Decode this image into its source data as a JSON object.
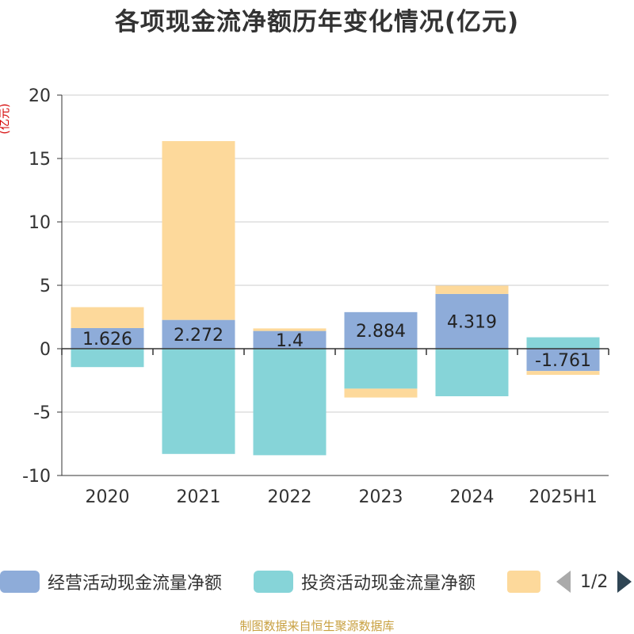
{
  "title": "各项现金流净额历年变化情况(亿元)",
  "unit_label": "(亿元)",
  "source": "制图数据来自恒生聚源数据库",
  "legend": {
    "items": [
      {
        "label": "经营活动现金流量净额",
        "color": "#8eacd9"
      },
      {
        "label": "投资活动现金流量净额",
        "color": "#86d4d8"
      },
      {
        "label": "",
        "color": "#fdd99b"
      }
    ],
    "page": "1/2"
  },
  "chart_data": {
    "type": "bar",
    "stacked": true,
    "categories": [
      "2020",
      "2021",
      "2022",
      "2023",
      "2024",
      "2025H1"
    ],
    "ylim": [
      -10,
      20
    ],
    "yticks": [
      -10,
      -5,
      0,
      5,
      10,
      15,
      20
    ],
    "grid": true,
    "legend_position": "bottom",
    "series": [
      {
        "name": "经营活动现金流量净额",
        "color": "#8eacd9",
        "values": [
          1.626,
          2.272,
          1.4,
          2.884,
          4.319,
          -1.761
        ],
        "labels": [
          "1.626",
          "2.272",
          "1.4",
          "2.884",
          "4.319",
          "-1.761"
        ]
      },
      {
        "name": "投资活动现金流量净额",
        "color": "#86d4d8",
        "values": [
          -1.45,
          -8.3,
          -8.4,
          -3.15,
          -3.75,
          0.9
        ]
      },
      {
        "color": "#fdd99b",
        "values": [
          1.65,
          14.1,
          0.2,
          -0.7,
          0.65,
          -0.3
        ]
      }
    ]
  }
}
